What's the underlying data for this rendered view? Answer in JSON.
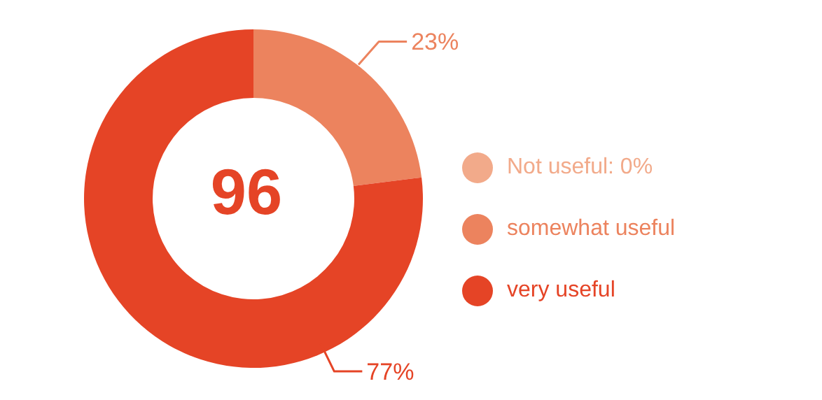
{
  "chart_data": {
    "type": "donut",
    "categories": [
      "Not useful: 0%",
      "somewhat useful",
      "very useful"
    ],
    "values": [
      0,
      23,
      77
    ],
    "colors": [
      "#f2aa8a",
      "#ec835e",
      "#e54426"
    ],
    "value_labels": [
      null,
      "23%",
      "77%"
    ],
    "annotations": [
      "96"
    ],
    "legend": "right"
  }
}
